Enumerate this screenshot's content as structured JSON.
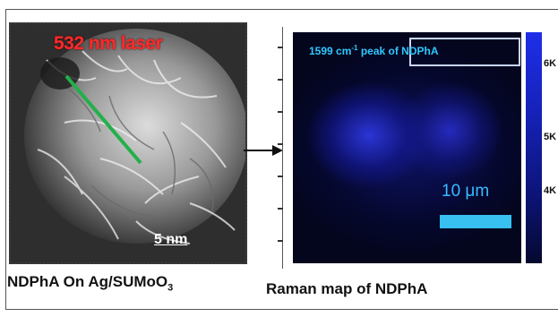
{
  "sem_panel": {
    "laser_label": "532 nm laser",
    "scale_label": "5 nm",
    "caption_main": "NDPhA On Ag/SUMoO",
    "caption_sub": "3"
  },
  "raman_panel": {
    "peak_label_prefix": "1599 cm",
    "peak_label_sup": "-1",
    "peak_label_suffix": " peak of NDPhA",
    "scale_label": "10 μm",
    "caption": "Raman map of NDPhA"
  },
  "colorbar": {
    "ticks": [
      "6K",
      "5K",
      "4K"
    ],
    "colors": [
      "#1e2ee8",
      "#05082e"
    ]
  },
  "colors": {
    "laser_text": "#ff2a2a",
    "laser_beam": "#22b04a",
    "peak_text": "#2fc8ff",
    "scale_bar": "#38c0f0"
  }
}
